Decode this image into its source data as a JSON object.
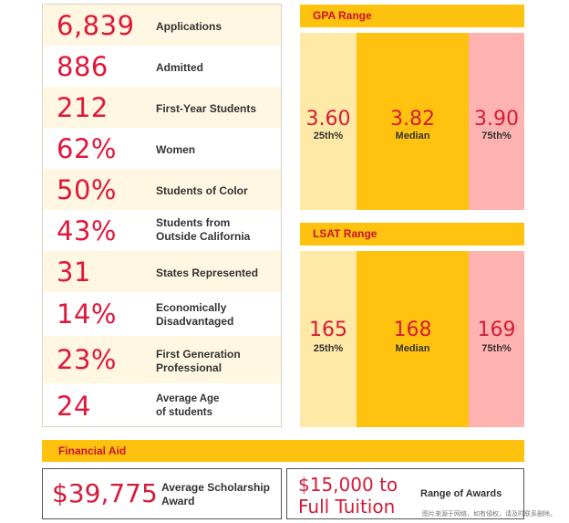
{
  "stats": [
    {
      "value": "6,839",
      "label": "Applications"
    },
    {
      "value": "886",
      "label": "Admitted"
    },
    {
      "value": "212",
      "label": "First-Year Students"
    },
    {
      "value": "62%",
      "label": "Women"
    },
    {
      "value": "50%",
      "label": "Students of Color"
    },
    {
      "value": "43%",
      "label": "Students from\nOutside California"
    },
    {
      "value": "31",
      "label": "States Represented"
    },
    {
      "value": "14%",
      "label": "Economically\nDisadvantaged"
    },
    {
      "value": "23%",
      "label": "First Generation\nProfessional"
    },
    {
      "value": "24",
      "label": "Average Age\nof students"
    }
  ],
  "gpa": {
    "title": "GPA Range",
    "p25": {
      "value": "3.60",
      "label": "25th%"
    },
    "median": {
      "value": "3.82",
      "label": "Median"
    },
    "p75": {
      "value": "3.90",
      "label": "75th%"
    }
  },
  "lsat": {
    "title": "LSAT Range",
    "p25": {
      "value": "165",
      "label": "25th%"
    },
    "median": {
      "value": "168",
      "label": "Median"
    },
    "p75": {
      "value": "169",
      "label": "75th%"
    }
  },
  "financial_aid": {
    "title": "Financial Aid",
    "scholarship_value": "$39,775",
    "scholarship_label": "Average Scholarship\nAward",
    "awards_value": "$15,000 to\nFull Tuition",
    "awards_label": "Range of Awards"
  },
  "watermark": "图片来源于网络，如有侵权，请及时联系删除。",
  "colors": {
    "accent_red": "#d41c3a",
    "gold": "#ffc20e",
    "pale_gold": "#ffe9a6",
    "pink": "#ffb3b0",
    "row_alt": "#fff7e1"
  }
}
